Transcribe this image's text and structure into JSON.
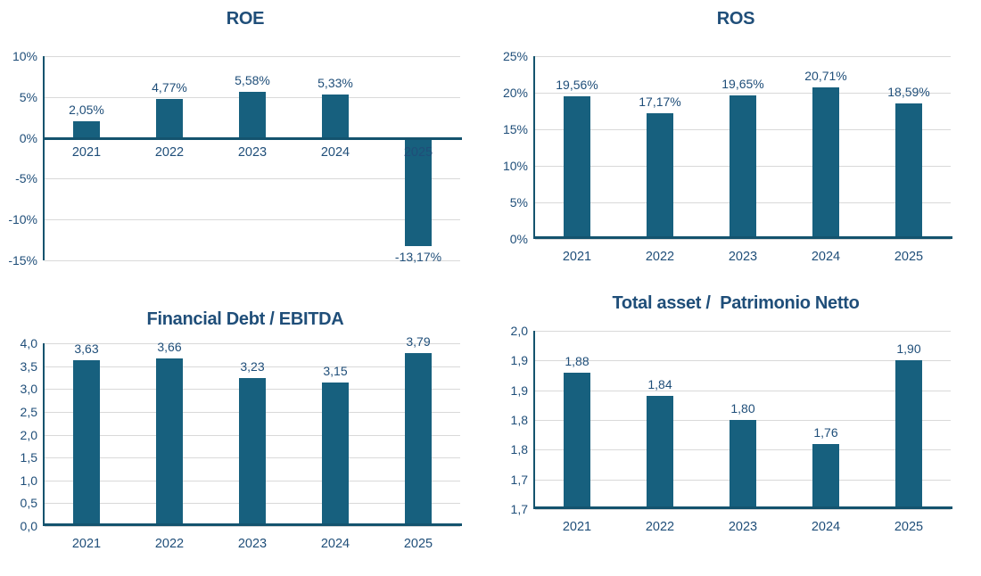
{
  "theme": {
    "background": "#FFFFFF",
    "bar_color": "#17607E",
    "text_color": "#1F4E79",
    "axis_line_color": "#14536E",
    "gridline_color": "#D9D9D9"
  },
  "chart_data": [
    {
      "id": "roe",
      "type": "bar",
      "title": "ROE",
      "categories": [
        "2021",
        "2022",
        "2023",
        "2024",
        "2025"
      ],
      "values": [
        2.05,
        4.77,
        5.58,
        5.33,
        -13.17
      ],
      "value_labels": [
        "2,05%",
        "4,77%",
        "5,58%",
        "5,33%",
        "-13,17%"
      ],
      "y_axis": {
        "min": -15,
        "max": 10,
        "step": 5,
        "tick_labels": [
          "10%",
          "5%",
          "0%",
          "-5%",
          "-10%",
          "-15%"
        ]
      },
      "baseline": 0,
      "category_labels_position": "zero-line",
      "grid": true,
      "legend": "none",
      "xlabel": "",
      "ylabel": ""
    },
    {
      "id": "ros",
      "type": "bar",
      "title": "ROS",
      "categories": [
        "2021",
        "2022",
        "2023",
        "2024",
        "2025"
      ],
      "values": [
        19.56,
        17.17,
        19.65,
        20.71,
        18.59
      ],
      "value_labels": [
        "19,56%",
        "17,17%",
        "19,65%",
        "20,71%",
        "18,59%"
      ],
      "y_axis": {
        "min": 0,
        "max": 25,
        "step": 5,
        "tick_labels": [
          "25%",
          "20%",
          "15%",
          "10%",
          "5%",
          "0%"
        ]
      },
      "baseline": 0,
      "category_labels_position": "below-axis",
      "grid": true,
      "legend": "none",
      "xlabel": "",
      "ylabel": ""
    },
    {
      "id": "financial-debt-ebitda",
      "type": "bar",
      "title": "Financial Debt / EBITDA",
      "categories": [
        "2021",
        "2022",
        "2023",
        "2024",
        "2025"
      ],
      "values": [
        3.63,
        3.66,
        3.23,
        3.15,
        3.79
      ],
      "value_labels": [
        "3,63",
        "3,66",
        "3,23",
        "3,15",
        "3,79"
      ],
      "y_axis": {
        "min": 0,
        "max": 4,
        "step": 0.5,
        "tick_labels": [
          "4,0",
          "3,5",
          "3,0",
          "2,5",
          "2,0",
          "1,5",
          "1,0",
          "0,5",
          "0,0"
        ]
      },
      "baseline": 0,
      "category_labels_position": "below-axis",
      "grid": true,
      "legend": "none",
      "xlabel": "",
      "ylabel": ""
    },
    {
      "id": "total-asset-patrimonio-netto",
      "type": "bar",
      "title": "Total asset /  Patrimonio Netto",
      "categories": [
        "2021",
        "2022",
        "2023",
        "2024",
        "2025"
      ],
      "values": [
        1.88,
        1.84,
        1.8,
        1.76,
        1.9
      ],
      "value_labels": [
        "1,88",
        "1,84",
        "1,80",
        "1,76",
        "1,90"
      ],
      "y_axis": {
        "min": 1.65,
        "max": 1.95,
        "step": 0.05,
        "tick_labels": [
          "2,0",
          "1,9",
          "1,9",
          "1,8",
          "1,8",
          "1,7",
          "1,7"
        ]
      },
      "baseline": 1.65,
      "category_labels_position": "below-axis",
      "grid": true,
      "legend": "none",
      "xlabel": "",
      "ylabel": ""
    }
  ]
}
